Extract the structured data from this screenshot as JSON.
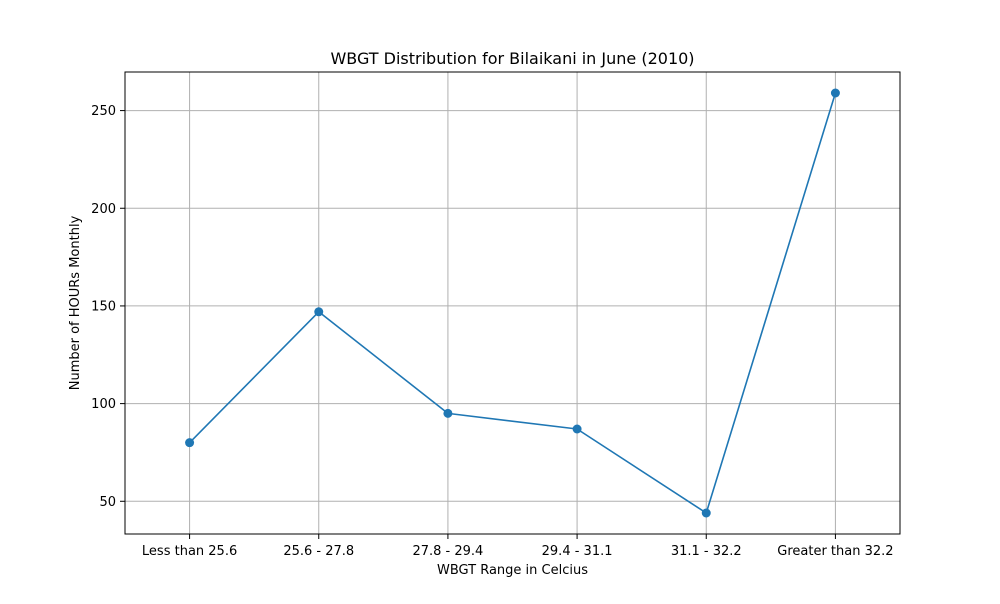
{
  "chart_data": {
    "type": "line",
    "title": "WBGT Distribution for Bilaikani in June (2010)",
    "xlabel": "WBGT Range in Celcius",
    "ylabel": "Number of HOURs Monthly",
    "categories": [
      "Less than 25.6",
      "25.6 - 27.8",
      "27.8 - 29.4",
      "29.4 - 31.1",
      "31.1 - 32.2",
      "Greater than 32.2"
    ],
    "series": [
      {
        "values": [
          80,
          147,
          95,
          87,
          44,
          259
        ]
      }
    ],
    "ylim": [
      33.25,
      269.75
    ],
    "yticks": [
      50,
      100,
      150,
      200,
      250
    ],
    "grid": true,
    "marker": "circle",
    "colors": {
      "series": "#1f77b4",
      "grid": "#b0b0b0",
      "axis": "#000000"
    }
  }
}
